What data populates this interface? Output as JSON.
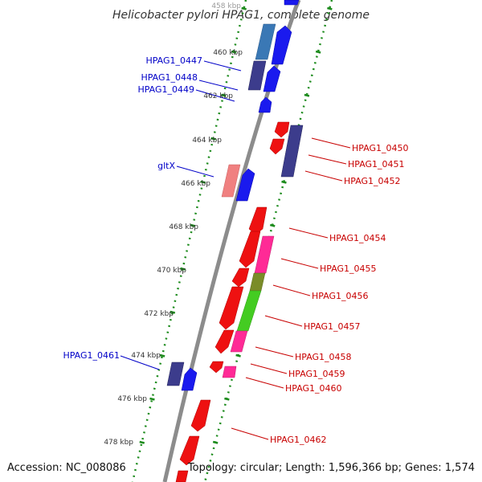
{
  "title": "Helicobacter pylori HPAG1, complete genome",
  "footer": {
    "accession": "Accession: NC_008086",
    "topology": "Topology: circular; Length: 1,596,366 bp; Genes: 1,574"
  },
  "colors": {
    "backbone": "#8c8c8c",
    "track_dots": "#1e8c1e",
    "label_forward": "#0000c8",
    "label_reverse": "#c80000",
    "gene_blue": "#1a1aee",
    "gene_red": "#ee1111",
    "gene_navy": "#3c3c8c",
    "gene_steel": "#3a78b5",
    "gene_pink": "#ff2a96",
    "gene_salmon": "#f08080",
    "gene_olive": "#7a8c28",
    "gene_green": "#44cc22"
  },
  "position_labels": [
    "458 kbp",
    "460 kbp",
    "462 kbp",
    "464 kbp",
    "466 kbp",
    "468 kbp",
    "470 kbp",
    "472 kbp",
    "474 kbp",
    "476 kbp",
    "478 kbp"
  ],
  "gene_labels": {
    "left": [
      "HPAG1_0447",
      "HPAG1_0448",
      "HPAG1_0449",
      "gltX",
      "HPAG1_0461"
    ],
    "right": [
      "HPAG1_0450",
      "HPAG1_0451",
      "HPAG1_0452",
      "HPAG1_0454",
      "HPAG1_0455",
      "HPAG1_0456",
      "HPAG1_0457",
      "HPAG1_0458",
      "HPAG1_0459",
      "HPAG1_0460",
      "HPAG1_0462"
    ]
  }
}
